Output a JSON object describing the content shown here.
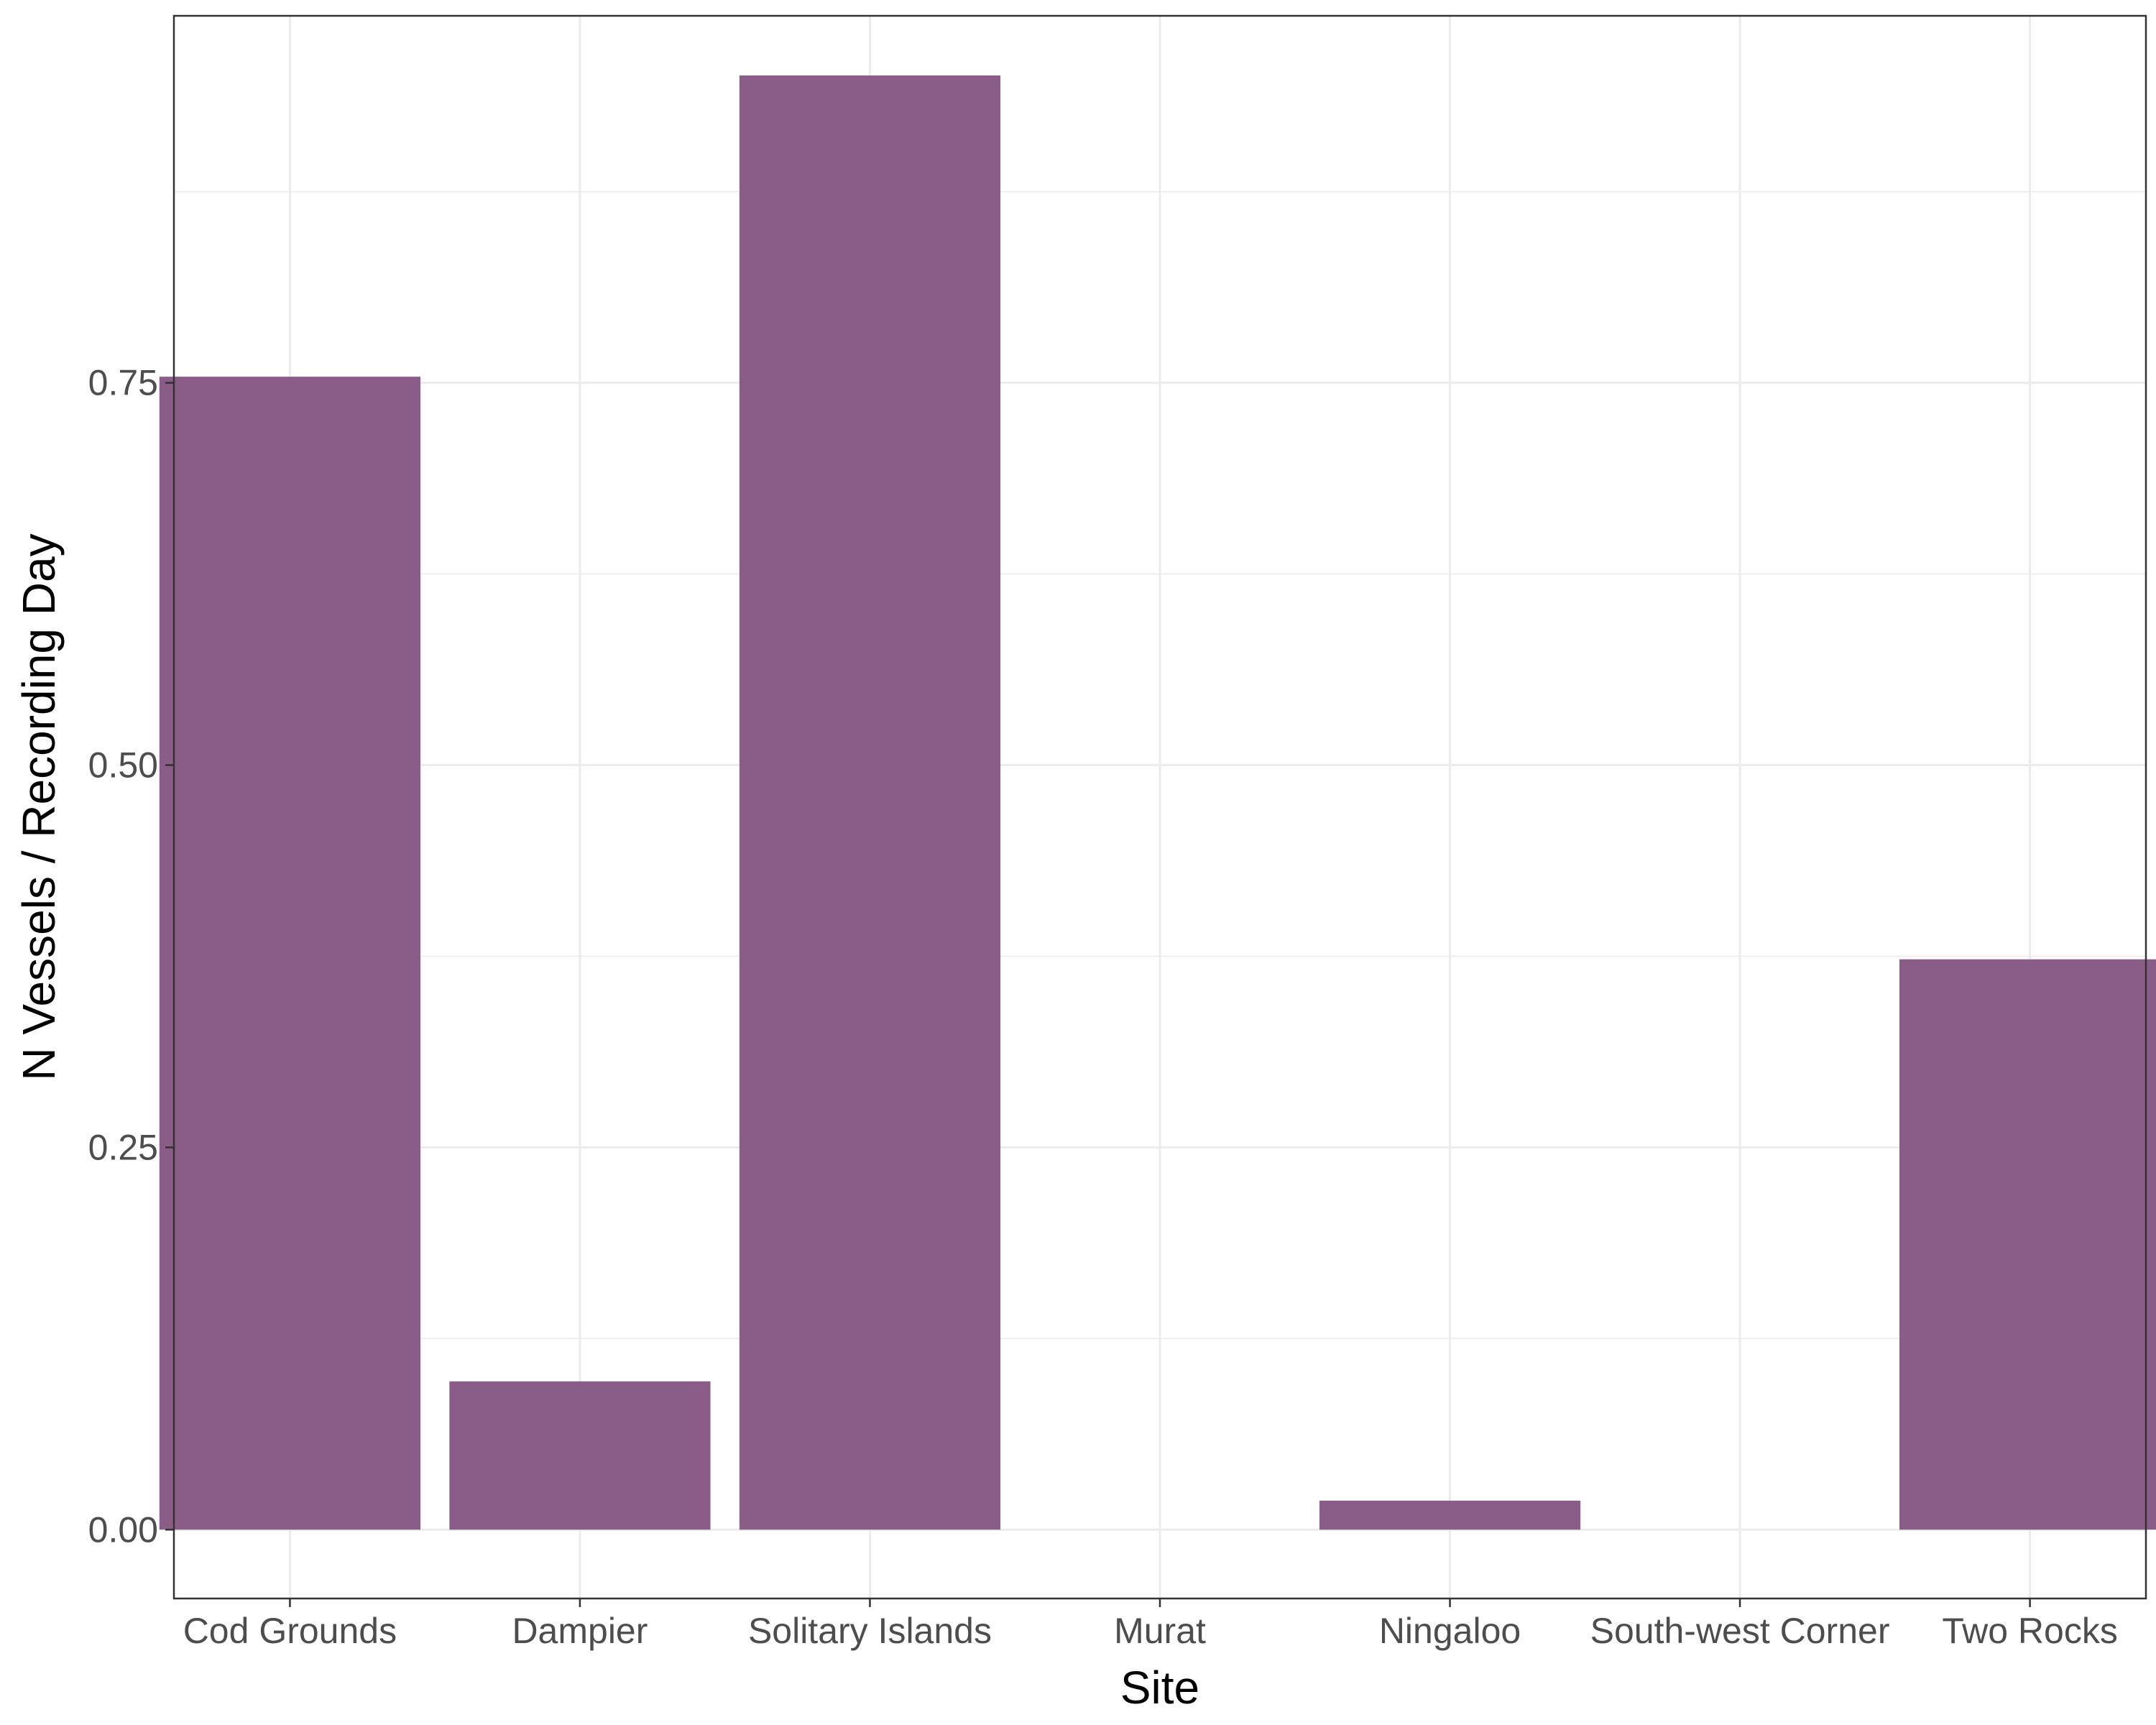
{
  "chart_data": {
    "type": "bar",
    "title": "",
    "xlabel": "Site",
    "ylabel": "N Vessels / Recording Day",
    "categories": [
      "Cod Grounds",
      "Dampier",
      "Solitary Islands",
      "Murat",
      "Ningaloo",
      "South-west Corner",
      "Two Rocks"
    ],
    "values": [
      0.754,
      0.097,
      0.951,
      0,
      0.019,
      0,
      0.373
    ],
    "ylim": [
      -0.045,
      0.99
    ],
    "yticks": [
      0.0,
      0.25,
      0.5,
      0.75
    ],
    "ytick_labels": [
      "0.00",
      "0.25",
      "0.50",
      "0.75"
    ],
    "grid": true,
    "legend": "none",
    "colors": {
      "bar": "#8a5c88",
      "grid": "#ebebeb",
      "panel_border": "#333333",
      "tick_text": "#4d4d4d",
      "title_text": "#000000"
    }
  }
}
